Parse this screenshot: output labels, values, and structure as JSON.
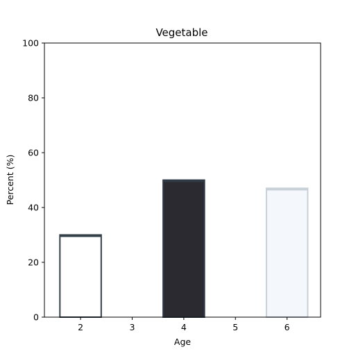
{
  "chart_data": {
    "type": "bar",
    "title": "Vegetable",
    "xlabel": "Age",
    "ylabel": "Percent (%)",
    "x": [
      2,
      4,
      6
    ],
    "values": [
      30,
      50,
      47
    ],
    "xticks": [
      "2",
      "3",
      "4",
      "5",
      "6"
    ],
    "yticks": [
      "0",
      "20",
      "40",
      "60",
      "80",
      "100"
    ],
    "xlim": [
      1.3,
      6.65
    ],
    "ylim": [
      0,
      100
    ],
    "grid": false,
    "bar_fills": [
      "#ffffff",
      "#2a2a30",
      "#f4f7fb"
    ],
    "bar_edges": [
      "#33404a",
      "#2f3a44",
      "#c8d0d8"
    ]
  }
}
